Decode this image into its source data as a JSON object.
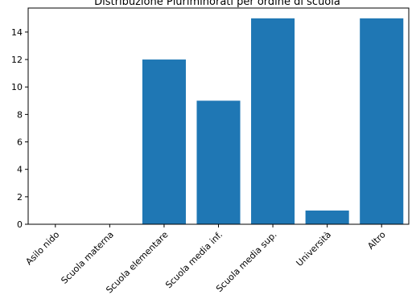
{
  "chart_data": {
    "type": "bar",
    "title": "Distribuzione Pluriminorati per ordine di scuola",
    "xlabel": "",
    "ylabel": "",
    "categories": [
      "Asilo nido",
      "Scuola materna",
      "Scuola elementare",
      "Scuola media inf.",
      "Scuola media sup.",
      "Università",
      "Altro"
    ],
    "values": [
      0,
      0,
      12,
      9,
      15,
      1,
      15
    ],
    "ylim": [
      0,
      15.75
    ],
    "yticks": [
      0,
      2,
      4,
      6,
      8,
      10,
      12,
      14
    ],
    "bar_color": "#1f77b4",
    "grid": false,
    "legend": false
  }
}
